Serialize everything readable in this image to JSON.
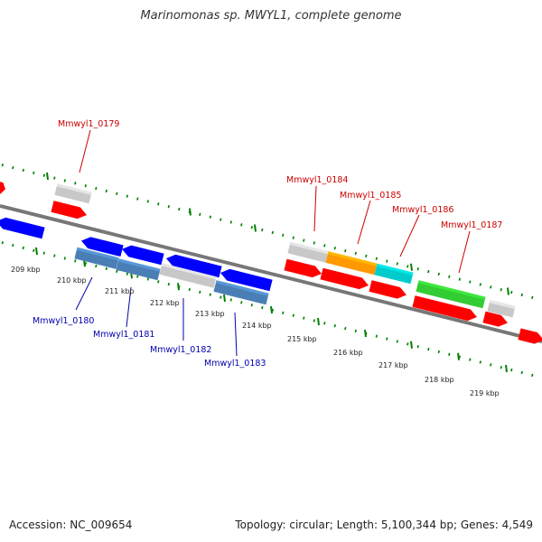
{
  "title": "Marinomonas sp. MWYL1, complete genome",
  "footer": {
    "accession": "Accession: NC_009654",
    "topology": "Topology: circular; Length: 5,100,344 bp; Genes: 4,549"
  },
  "colors": {
    "backbone": "#808080",
    "tick": "#008000",
    "label_top": "#cc0000",
    "label_bottom": "#0000aa",
    "red": "#ff0000",
    "blue": "#0000ff",
    "steel": "#4a7fb5",
    "gray": "#c8c8c8",
    "orange": "#ff9900",
    "cyan": "#00cccc",
    "green": "#33cc33"
  },
  "kbp_labels": [
    "209 kbp",
    "210 kbp",
    "211 kbp",
    "212 kbp",
    "213 kbp",
    "214 kbp",
    "215 kbp",
    "216 kbp",
    "217 kbp",
    "218 kbp",
    "219 kbp"
  ],
  "gene_labels_top": [
    "Mmwyl1_0179",
    "Mmwyl1_0184",
    "Mmwyl1_0185",
    "Mmwyl1_0186",
    "Mmwyl1_0187"
  ],
  "gene_labels_bottom": [
    "Mmwyl1_0180",
    "Mmwyl1_0181",
    "Mmwyl1_0182",
    "Mmwyl1_0183"
  ]
}
